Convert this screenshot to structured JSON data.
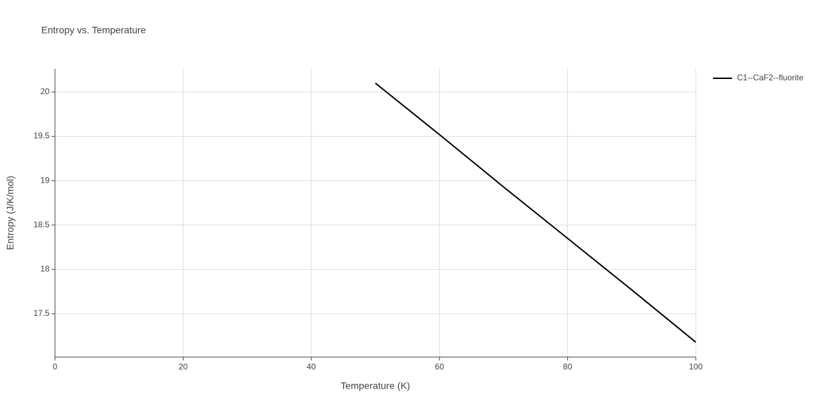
{
  "chart_data": {
    "type": "line",
    "title": "Entropy vs. Temperature",
    "x_label": "Temperature (K)",
    "y_label": "Entropy (J/K/mol)",
    "x": [
      50,
      60,
      70,
      80,
      90,
      100
    ],
    "series": [
      {
        "name": "C1--CaF2--fluorite",
        "color": "#000000",
        "values": [
          20.1,
          19.52,
          18.93,
          18.35,
          17.77,
          17.18
        ]
      }
    ],
    "xlim": [
      0,
      100
    ],
    "xticks": [
      0,
      20,
      40,
      60,
      80,
      100
    ],
    "ylim": [
      17.012,
      20.263
    ],
    "yticks": [
      17.5,
      18,
      18.5,
      19,
      19.5,
      20
    ],
    "grid": true,
    "legend": "right"
  }
}
